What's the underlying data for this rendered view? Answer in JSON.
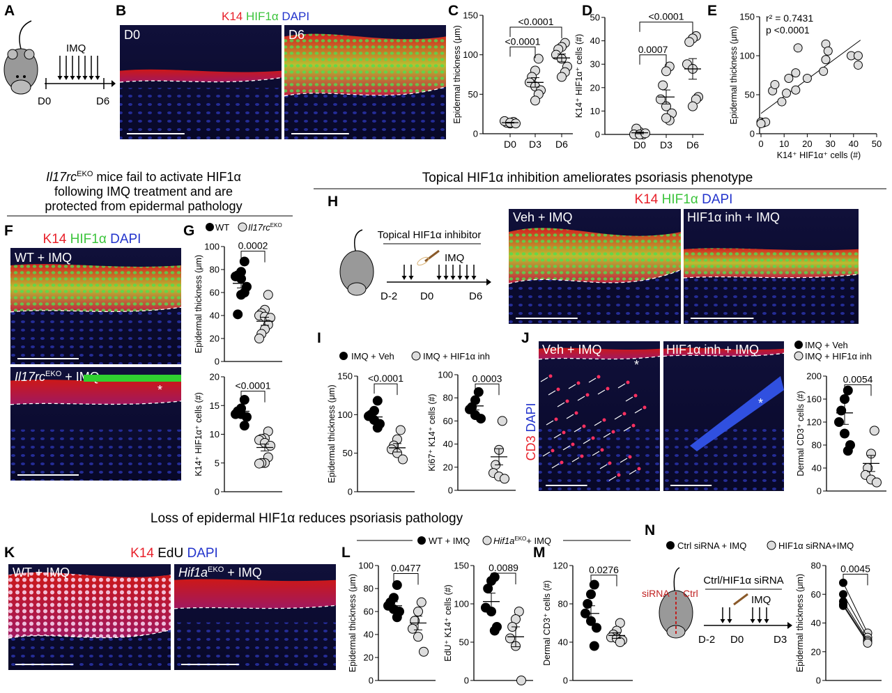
{
  "panels": {
    "A": {
      "letter": "A",
      "label_imq": "IMQ",
      "label_d0": "D0",
      "label_d6": "D6"
    },
    "B": {
      "letter": "B",
      "stain": [
        "K14",
        "HIF1α",
        "DAPI"
      ],
      "images": [
        "D0",
        "D6"
      ]
    },
    "C": {
      "letter": "C"
    },
    "D": {
      "letter": "D"
    },
    "E": {
      "letter": "E"
    },
    "F": {
      "letter": "F",
      "stain": [
        "K14",
        "HIF1α",
        "DAPI"
      ],
      "img1": "WT + IMQ",
      "img2_gene": "Il17rc",
      "img2_sup": "EKO",
      "img2_rest": " + IMQ",
      "asterisk": "*"
    },
    "G": {
      "letter": "G",
      "legend_wt": "WT",
      "legend_ko_gene": "Il17rc",
      "legend_ko_sup": "EKO"
    },
    "H": {
      "letter": "H",
      "stain": [
        "K14",
        "HIF1α",
        "DAPI"
      ],
      "images": [
        "Veh + IMQ",
        "HIF1α inh + IMQ"
      ],
      "schematic_title": "Topical HIF1α inhibitor",
      "label_imq": "IMQ",
      "ticks": [
        "D-2",
        "D0",
        "D6"
      ]
    },
    "I": {
      "letter": "I",
      "legend": [
        "IMQ + Veh",
        "IMQ + HIF1α inh"
      ]
    },
    "J": {
      "letter": "J",
      "stain": [
        "CD3",
        "DAPI"
      ],
      "images": [
        "Veh + IMQ",
        "HIF1α inh + IMQ"
      ],
      "legend": [
        "IMQ + Veh",
        "IMQ + HIF1α inh"
      ],
      "asterisk": "*"
    },
    "K": {
      "letter": "K",
      "stain": [
        "K14",
        "EdU",
        "DAPI"
      ],
      "img1": "WT + IMQ",
      "img2_gene": "Hif1a",
      "img2_sup": "EKO",
      "img2_rest": " + IMQ"
    },
    "L": {
      "letter": "L",
      "legend_wt": "WT + IMQ",
      "legend_ko_gene": "Hif1a",
      "legend_ko_sup": "EKO",
      "legend_ko_rest": "+ IMQ"
    },
    "M": {
      "letter": "M"
    },
    "N": {
      "letter": "N",
      "legend": [
        "Ctrl siRNA + IMQ",
        "HIF1α siRNA+IMQ"
      ],
      "schematic_title": "Ctrl/HIF1α siRNA",
      "label_imq": "IMQ",
      "label_sirna": "siRNA",
      "label_ctrl": "Ctrl",
      "ticks": [
        "D-2",
        "D0",
        "D3"
      ]
    }
  },
  "headings": {
    "F_line1_gene": "Il17rc",
    "F_line1_sup": "EKO",
    "F_line1_rest": "  mice fail to activate HIF1α",
    "F_line2": "following IMQ treatment and are",
    "F_line3": "protected from epidermal pathology",
    "H": "Topical HIF1α inhibition ameliorates psoriasis phenotype",
    "K": "Loss of epidermal HIF1α reduces psoriasis pathology"
  },
  "colors": {
    "k14": "#e8202a",
    "hif": "#3cc43c",
    "dapi": "#2233cc",
    "open_dot": "#d9d9d9",
    "filled_dot": "#000000"
  },
  "chart_data": [
    {
      "id": "C",
      "type": "scatter-dot",
      "ylabel": "Epidermal thickness (μm)",
      "ylim": [
        0,
        150
      ],
      "yticks": [
        0,
        50,
        100,
        150
      ],
      "categories": [
        "D0",
        "D3",
        "D6"
      ],
      "groups": [
        {
          "values": [
            15,
            13,
            14,
            16,
            14,
            13
          ],
          "mean": 14,
          "sem": 0.5,
          "fill": "open"
        },
        {
          "values": [
            95,
            80,
            72,
            65,
            60,
            55,
            50,
            42
          ],
          "mean": 65,
          "sem": 6,
          "fill": "open"
        },
        {
          "values": [
            115,
            110,
            107,
            100,
            95,
            85,
            78,
            72
          ],
          "mean": 96,
          "sem": 5,
          "fill": "open"
        }
      ],
      "brackets": [
        {
          "from": 0,
          "to": 1,
          "label": "<0.0001",
          "y": 110
        },
        {
          "from": 0,
          "to": 2,
          "label": "<0.0001",
          "y": 135
        }
      ]
    },
    {
      "id": "D",
      "type": "scatter-dot",
      "ylabel": "K14⁺ HIF1α⁺ cells (#)",
      "ylim": [
        0,
        50
      ],
      "yticks": [
        0,
        10,
        20,
        30,
        40,
        50
      ],
      "categories": [
        "D0",
        "D3",
        "D6"
      ],
      "groups": [
        {
          "values": [
            0,
            1,
            2.5,
            0,
            0,
            0.5
          ],
          "mean": 0.7,
          "sem": 0.4,
          "fill": "open"
        },
        {
          "values": [
            29,
            27,
            21,
            15,
            12,
            9,
            6,
            7
          ],
          "mean": 16,
          "sem": 3,
          "fill": "open"
        },
        {
          "values": [
            42,
            41,
            39.5,
            30,
            28,
            16,
            15,
            12
          ],
          "mean": 28,
          "sem": 4.4,
          "fill": "open"
        }
      ],
      "brackets": [
        {
          "from": 0,
          "to": 1,
          "label": "0.0007",
          "y": 34
        },
        {
          "from": 0,
          "to": 2,
          "label": "<0.0001",
          "y": 48
        }
      ]
    },
    {
      "id": "E",
      "type": "scatter",
      "xlabel": "K14⁺ HIF1α⁺ cells (#)",
      "ylabel": "Epidermal thickness (μm)",
      "xlim": [
        0,
        50
      ],
      "ylim": [
        0,
        150
      ],
      "xticks": [
        0,
        10,
        20,
        30,
        40,
        50
      ],
      "yticks": [
        0,
        50,
        100,
        150
      ],
      "annotation": [
        "r² = 0.7431",
        "p <0.0001"
      ],
      "points": [
        [
          0,
          15
        ],
        [
          1,
          14
        ],
        [
          2,
          15
        ],
        [
          0,
          13
        ],
        [
          5,
          55
        ],
        [
          6,
          63
        ],
        [
          9,
          41
        ],
        [
          11,
          52
        ],
        [
          12,
          71
        ],
        [
          15,
          56
        ],
        [
          15,
          78
        ],
        [
          16,
          110
        ],
        [
          20,
          71
        ],
        [
          27,
          80
        ],
        [
          28,
          95
        ],
        [
          28,
          115
        ],
        [
          29,
          106
        ],
        [
          39,
          100
        ],
        [
          42,
          100
        ],
        [
          42,
          88
        ]
      ],
      "fit": [
        [
          0,
          26
        ],
        [
          43,
          120
        ]
      ]
    },
    {
      "id": "G1",
      "type": "scatter-dot",
      "ylabel": "Epidermal thickness (μm)",
      "ylim": [
        0,
        100
      ],
      "yticks": [
        0,
        20,
        40,
        60,
        80,
        100
      ],
      "categories": [
        "",
        ""
      ],
      "groups": [
        {
          "values": [
            87,
            78,
            75,
            74,
            72,
            65,
            60,
            58,
            41
          ],
          "mean": 68,
          "sem": 4,
          "fill": "filled"
        },
        {
          "values": [
            58,
            45,
            42,
            40,
            39,
            38,
            32,
            28,
            24,
            20
          ],
          "mean": 35,
          "sem": 3.5,
          "fill": "open"
        }
      ],
      "brackets": [
        {
          "from": 0,
          "to": 1,
          "label": "0.0002",
          "y": 96
        }
      ]
    },
    {
      "id": "G2",
      "type": "scatter-dot",
      "ylabel": "K14⁺ HIF1α⁺ cells (#)",
      "ylim": [
        0,
        20
      ],
      "yticks": [
        0,
        5,
        10,
        15,
        20
      ],
      "categories": [
        "",
        ""
      ],
      "groups": [
        {
          "values": [
            16,
            14.5,
            14,
            13.5,
            13.5,
            13,
            11.5
          ],
          "mean": 14,
          "sem": 0.5,
          "fill": "filled"
        },
        {
          "values": [
            10.5,
            9.3,
            9.2,
            9,
            8.5,
            8,
            6,
            5,
            5,
            4.9
          ],
          "mean": 7.7,
          "sem": 0.6,
          "fill": "open"
        }
      ],
      "brackets": [
        {
          "from": 0,
          "to": 1,
          "label": "<0.0001",
          "y": 17.5
        }
      ]
    },
    {
      "id": "I1",
      "type": "scatter-dot",
      "ylabel": "Epidermal thickness (μm)",
      "ylim": [
        0,
        150
      ],
      "yticks": [
        0,
        50,
        100,
        150
      ],
      "categories": [
        "",
        ""
      ],
      "groups": [
        {
          "values": [
            118,
            105,
            100,
            98,
            93,
            88,
            83
          ],
          "mean": 97,
          "sem": 4.5,
          "fill": "filled"
        },
        {
          "values": [
            80,
            68,
            60,
            55,
            50,
            42
          ],
          "mean": 57,
          "sem": 5.5,
          "fill": "open"
        }
      ],
      "brackets": [
        {
          "from": 0,
          "to": 1,
          "label": "<0.0001",
          "y": 140
        }
      ]
    },
    {
      "id": "I2",
      "type": "scatter-dot",
      "ylabel": "Ki67⁺ K14⁺ cells (#)",
      "ylim": [
        0,
        100
      ],
      "yticks": [
        0,
        20,
        40,
        60,
        80,
        100
      ],
      "categories": [
        "",
        ""
      ],
      "groups": [
        {
          "values": [
            85,
            78,
            72,
            70,
            65,
            62
          ],
          "mean": 73,
          "sem": 3.5,
          "fill": "filled"
        },
        {
          "values": [
            60,
            35,
            22,
            15,
            12,
            10
          ],
          "mean": 29,
          "sem": 7,
          "fill": "open"
        }
      ],
      "brackets": [
        {
          "from": 0,
          "to": 1,
          "label": "0.0003",
          "y": 92
        }
      ]
    },
    {
      "id": "J",
      "type": "scatter-dot",
      "ylabel": "Dermal CD3⁺ cells (#)",
      "ylim": [
        0,
        200
      ],
      "yticks": [
        0,
        40,
        80,
        120,
        160,
        200
      ],
      "categories": [
        "",
        ""
      ],
      "groups": [
        {
          "values": [
            175,
            160,
            140,
            120,
            100,
            80,
            70
          ],
          "mean": 136,
          "sem": 20,
          "fill": "filled"
        },
        {
          "values": [
            105,
            65,
            40,
            28,
            20,
            15
          ],
          "mean": 48,
          "sem": 14,
          "fill": "open"
        }
      ],
      "brackets": [
        {
          "from": 0,
          "to": 1,
          "label": "0.0054",
          "y": 185
        }
      ]
    },
    {
      "id": "L1",
      "type": "scatter-dot",
      "ylabel": "Epidermal thickness (μm)",
      "ylim": [
        0,
        100
      ],
      "yticks": [
        0,
        20,
        40,
        60,
        80,
        100
      ],
      "categories": [
        "",
        ""
      ],
      "groups": [
        {
          "values": [
            83,
            72,
            68,
            65,
            62,
            60,
            55
          ],
          "mean": 65,
          "sem": 3.5,
          "fill": "filled"
        },
        {
          "values": [
            68,
            60,
            52,
            45,
            38,
            25
          ],
          "mean": 50,
          "sem": 6,
          "fill": "open"
        }
      ],
      "brackets": [
        {
          "from": 0,
          "to": 1,
          "label": "0.0477",
          "y": 93
        }
      ]
    },
    {
      "id": "L2",
      "type": "scatter-dot",
      "ylabel": "EdU⁺ K14⁺ cells (#)",
      "ylim": [
        0,
        150
      ],
      "yticks": [
        0,
        50,
        100,
        150
      ],
      "categories": [
        "",
        ""
      ],
      "groups": [
        {
          "values": [
            135,
            130,
            120,
            95,
            90,
            70,
            65
          ],
          "mean": 103,
          "sem": 11,
          "fill": "filled"
        },
        {
          "values": [
            90,
            80,
            70,
            55,
            45,
            0
          ],
          "mean": 57,
          "sem": 13,
          "fill": "open"
        }
      ],
      "brackets": [
        {
          "from": 0,
          "to": 1,
          "label": "0.0089",
          "y": 140
        }
      ]
    },
    {
      "id": "M",
      "type": "scatter-dot",
      "ylabel": "Dermal CD3⁺ cells (#)",
      "ylim": [
        0,
        120
      ],
      "yticks": [
        0,
        40,
        80,
        120
      ],
      "categories": [
        "",
        ""
      ],
      "groups": [
        {
          "values": [
            100,
            90,
            80,
            70,
            62,
            55,
            36
          ],
          "mean": 70,
          "sem": 8,
          "fill": "filled"
        },
        {
          "values": [
            60,
            52,
            48,
            45,
            44,
            42,
            40
          ],
          "mean": 47,
          "sem": 3,
          "fill": "open"
        }
      ],
      "brackets": [
        {
          "from": 0,
          "to": 1,
          "label": "0.0276",
          "y": 110
        }
      ]
    },
    {
      "id": "N",
      "type": "paired",
      "ylabel": "Epidermal thickness (μm)",
      "ylim": [
        0,
        80
      ],
      "yticks": [
        0,
        20,
        40,
        60,
        80
      ],
      "pairs": [
        [
          68,
          33
        ],
        [
          60,
          30
        ],
        [
          55,
          28
        ],
        [
          53,
          27
        ],
        [
          52,
          26
        ]
      ],
      "brackets": [
        {
          "from": 0,
          "to": 1,
          "label": "0.0045",
          "y": 74
        }
      ]
    }
  ]
}
